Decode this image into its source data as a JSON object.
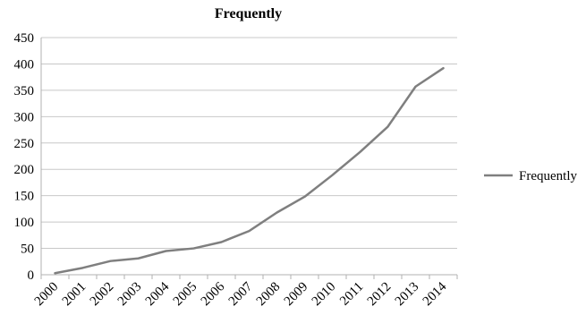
{
  "chart_data": {
    "type": "line",
    "title": "Frequently",
    "xlabel": "",
    "ylabel": "",
    "x": [
      "2000",
      "2001",
      "2002",
      "2003",
      "2004",
      "2005",
      "2006",
      "2007",
      "2008",
      "2009",
      "2010",
      "2011",
      "2012",
      "2013",
      "2014"
    ],
    "series": [
      {
        "name": "Frequently",
        "values": [
          3,
          13,
          26,
          31,
          45,
          50,
          62,
          83,
          118,
          148,
          189,
          233,
          281,
          357,
          392
        ],
        "color": "#7f7f7f"
      }
    ],
    "ylim": [
      0,
      450
    ],
    "yticks": [
      0,
      50,
      100,
      150,
      200,
      250,
      300,
      350,
      400,
      450
    ],
    "grid": true,
    "legend": "right"
  }
}
